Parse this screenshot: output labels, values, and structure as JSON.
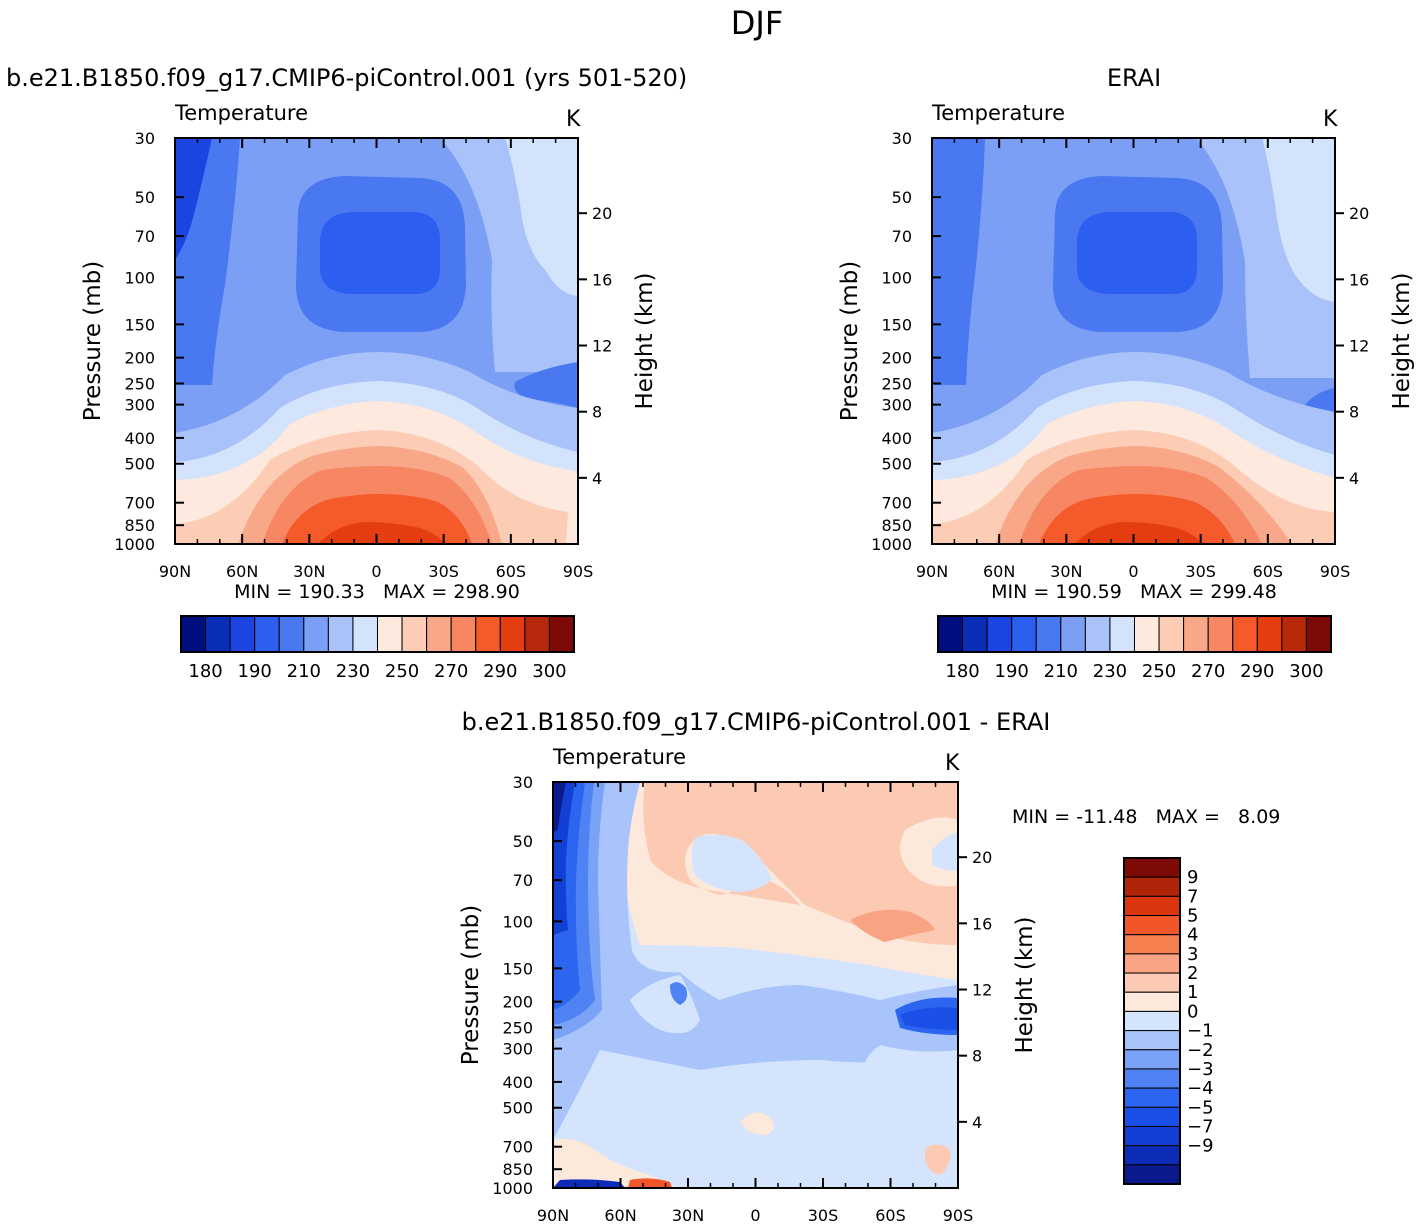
{
  "figure": {
    "title": "DJF"
  },
  "panels": [
    {
      "id": "model",
      "header": "b.e21.B1850.f09_g17.CMIP6-piControl.001 (yrs 501-520)",
      "left_label": "Temperature",
      "right_label": "K",
      "stats": "MIN = 190.33   MAX = 298.90",
      "ylabel": "Pressure (mb)",
      "y2label": "Height (km)"
    },
    {
      "id": "obs",
      "header": "ERAI",
      "left_label": "Temperature",
      "right_label": "K",
      "stats": "MIN = 190.59   MAX = 299.48",
      "ylabel": "Pressure (mb)",
      "y2label": "Height (km)"
    },
    {
      "id": "diff",
      "header": "b.e21.B1850.f09_g17.CMIP6-piControl.001 - ERAI",
      "left_label": "Temperature",
      "right_label": "K",
      "stats": "MIN = -11.48   MAX =   8.09",
      "ylabel": "Pressure (mb)",
      "y2label": "Height (km)"
    }
  ],
  "chart_data": [
    {
      "type": "contour",
      "title": "Temperature",
      "subtitle": "b.e21.B1850.f09_g17.CMIP6-piControl.001 (yrs 501-520)",
      "units": "K",
      "x_ticks": [
        "90N",
        "60N",
        "30N",
        "0",
        "30S",
        "60S",
        "90S"
      ],
      "x_values": [
        -90,
        -60,
        -30,
        0,
        30,
        60,
        90
      ],
      "y_ticks": [
        30,
        50,
        70,
        100,
        150,
        200,
        250,
        300,
        400,
        500,
        700,
        850,
        1000
      ],
      "y_scale": "log",
      "ylim": [
        1000,
        30
      ],
      "y2_ticks": [
        4,
        8,
        12,
        16,
        20
      ],
      "xlabel": "",
      "ylabel": "Pressure (mb)",
      "y2label": "Height (km)",
      "min": 190.33,
      "max": 298.9,
      "colorbar_labels": [
        "180",
        "190",
        "210",
        "230",
        "250",
        "270",
        "290",
        "300"
      ],
      "colorbar_orientation": "horizontal"
    },
    {
      "type": "contour",
      "title": "Temperature",
      "subtitle": "ERAI",
      "units": "K",
      "x_ticks": [
        "90N",
        "60N",
        "30N",
        "0",
        "30S",
        "60S",
        "90S"
      ],
      "x_values": [
        -90,
        -60,
        -30,
        0,
        30,
        60,
        90
      ],
      "y_ticks": [
        30,
        50,
        70,
        100,
        150,
        200,
        250,
        300,
        400,
        500,
        700,
        850,
        1000
      ],
      "y_scale": "log",
      "ylim": [
        1000,
        30
      ],
      "y2_ticks": [
        4,
        8,
        12,
        16,
        20
      ],
      "xlabel": "",
      "ylabel": "Pressure (mb)",
      "y2label": "Height (km)",
      "min": 190.59,
      "max": 299.48,
      "colorbar_labels": [
        "180",
        "190",
        "210",
        "230",
        "250",
        "270",
        "290",
        "300"
      ],
      "colorbar_orientation": "horizontal"
    },
    {
      "type": "contour",
      "title": "Temperature",
      "subtitle": "b.e21.B1850.f09_g17.CMIP6-piControl.001 - ERAI",
      "units": "K",
      "x_ticks": [
        "90N",
        "60N",
        "30N",
        "0",
        "30S",
        "60S",
        "90S"
      ],
      "x_values": [
        -90,
        -60,
        -30,
        0,
        30,
        60,
        90
      ],
      "y_ticks": [
        30,
        50,
        70,
        100,
        150,
        200,
        250,
        300,
        400,
        500,
        700,
        850,
        1000
      ],
      "y_scale": "log",
      "ylim": [
        1000,
        30
      ],
      "y2_ticks": [
        4,
        8,
        12,
        16,
        20
      ],
      "xlabel": "",
      "ylabel": "Pressure (mb)",
      "y2label": "Height (km)",
      "min": -11.48,
      "max": 8.09,
      "colorbar_labels": [
        "9",
        "7",
        "5",
        "4",
        "3",
        "2",
        "1",
        "0",
        "-1",
        "-2",
        "-3",
        "-4",
        "-5",
        "-7",
        "-9"
      ],
      "colorbar_orientation": "vertical"
    }
  ],
  "palette_abs": [
    "#000f80",
    "#0a2eb8",
    "#1b44e0",
    "#2c5ef0",
    "#4a78f0",
    "#7a9ff5",
    "#a9c2fa",
    "#d3e3fc",
    "#fde9de",
    "#fcccb4",
    "#f8a888",
    "#f68762",
    "#f45a2a",
    "#e33d10",
    "#b8280a",
    "#7e0a05"
  ],
  "palette_diff": [
    "#0a1a8c",
    "#0c2cb8",
    "#1240d4",
    "#1a50e8",
    "#2c66f0",
    "#4f82f3",
    "#7aa2f6",
    "#a8c4fa",
    "#d3e4fc",
    "#fde8dc",
    "#fccab2",
    "#f8a484",
    "#f6804f",
    "#f2552a",
    "#d9350e",
    "#b0240a",
    "#7e0a05"
  ]
}
